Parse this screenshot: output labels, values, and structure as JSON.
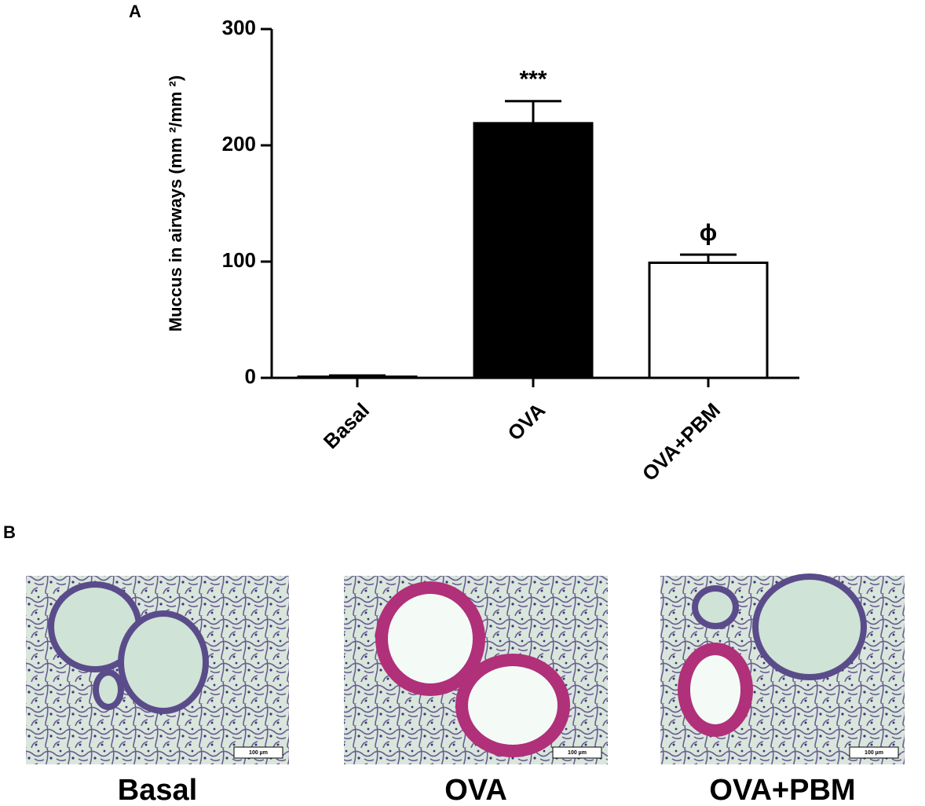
{
  "panel_labels": [
    "A",
    "B"
  ],
  "chart_data": {
    "type": "bar",
    "y_label": "Muccus in airways (mm ²/mm ²)",
    "categories": [
      "Basal",
      "OVA",
      "OVA+PBM"
    ],
    "values": [
      1,
      219,
      99
    ],
    "errors": [
      1,
      19,
      7
    ],
    "colors": [
      "#ffffff",
      "#000000",
      "#ffffff"
    ],
    "annotations": [
      null,
      "***",
      "ϕ"
    ],
    "ylim": [
      0,
      300
    ],
    "yticks": [
      0,
      100,
      200,
      300
    ]
  },
  "micrographs": [
    {
      "caption": "Basal",
      "scale_bar": "100 µm"
    },
    {
      "caption": "OVA",
      "scale_bar": "100 µm"
    },
    {
      "caption": "OVA+PBM",
      "scale_bar": "100 µm"
    }
  ]
}
